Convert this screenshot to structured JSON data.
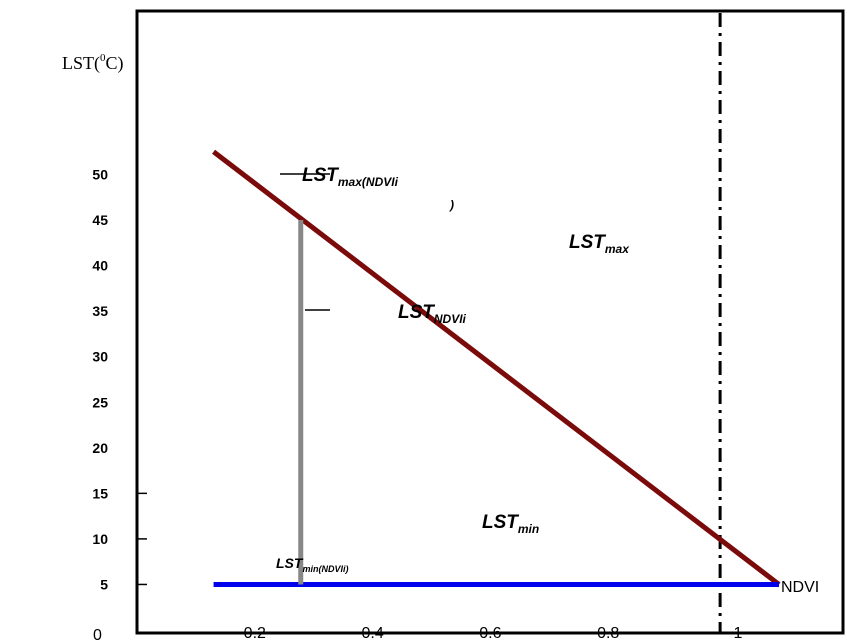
{
  "chart_data": {
    "type": "line",
    "ylabel": {
      "base": "LST(",
      "sup": "0",
      "end": "C)"
    },
    "xlabel": "NDVI",
    "x_range": [
      0.1,
      1.2
    ],
    "y_range": [
      0,
      55
    ],
    "y_ticks": [
      5,
      10,
      15,
      20,
      25,
      30,
      35,
      40,
      45,
      50
    ],
    "y_origin_label": "0",
    "x_ticks": [
      0.2,
      0.4,
      0.6,
      0.8,
      1
    ],
    "x_tick_labels": [
      "0.2",
      "0.4",
      "0.6",
      "0.8",
      "1"
    ],
    "series": [
      {
        "color": "#7b0a0a",
        "points": [
          [
            0.13,
            52.5
          ],
          [
            1.09,
            5
          ]
        ]
      },
      {
        "color": "#0000ee",
        "points": [
          [
            0.13,
            5
          ],
          [
            1.09,
            5
          ]
        ]
      },
      {
        "color": "#888888",
        "points": [
          [
            0.278,
            5
          ],
          [
            0.278,
            45
          ]
        ]
      }
    ],
    "vline_ndvi": 0.99
  },
  "annotations": {
    "lst_max_ndvi": {
      "base": "LST",
      "sub": "max(NDVIi"
    },
    "lst_max_ndvi_close": ")",
    "lst_max": {
      "base": "LST",
      "sub": "max"
    },
    "lst_ndvi": {
      "base": "LST",
      "sub": "NDVIi"
    },
    "lst_min": {
      "base": "LST",
      "sub": "min"
    },
    "lst_min_ndvi": {
      "base": "LST",
      "sub": "min(NDVIi)"
    }
  }
}
